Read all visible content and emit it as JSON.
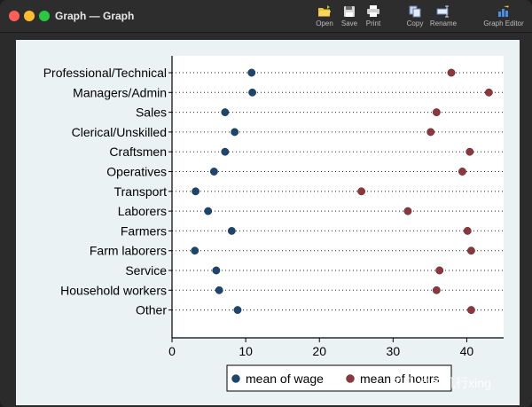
{
  "window": {
    "title": "Graph — Graph"
  },
  "toolbar": {
    "open_label": "Open",
    "save_label": "Save",
    "print_label": "Print",
    "copy_label": "Copy",
    "rename_label": "Rename",
    "graph_editor_label": "Graph Editor"
  },
  "colors": {
    "wage": "#1a476f",
    "hours": "#90353b",
    "plot_bg": "#ffffff",
    "graph_bg": "#eaf2f3"
  },
  "chart_data": {
    "type": "scatter",
    "orientation": "horizontal-dot",
    "categories": [
      "Professional/Technical",
      "Managers/Admin",
      "Sales",
      "Clerical/Unskilled",
      "Craftsmen",
      "Operatives",
      "Transport",
      "Laborers",
      "Farmers",
      "Farm laborers",
      "Service",
      "Household workers",
      "Other"
    ],
    "series": [
      {
        "name": "mean of wage",
        "values": [
          10.8,
          10.9,
          7.2,
          8.5,
          7.2,
          5.7,
          3.2,
          4.9,
          8.1,
          3.1,
          6.0,
          6.4,
          8.9
        ]
      },
      {
        "name": "mean of hours",
        "values": [
          37.9,
          43.0,
          35.9,
          35.1,
          40.4,
          39.4,
          25.7,
          32.0,
          40.1,
          40.6,
          36.3,
          35.9,
          40.6
        ]
      }
    ],
    "xlim": [
      0,
      45
    ],
    "xticks": [
      0,
      10,
      20,
      30,
      40
    ],
    "xlabel": "",
    "ylabel": "",
    "title": "",
    "grid": "dotted horizontal lines",
    "legend_position": "bottom"
  },
  "watermark": "知乎 @王几行xing"
}
